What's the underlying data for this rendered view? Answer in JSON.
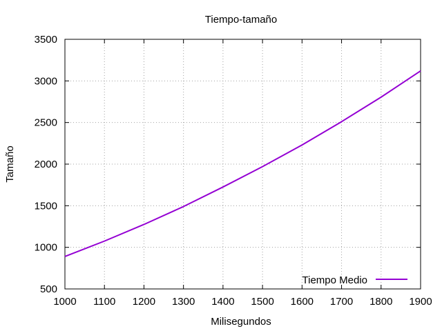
{
  "chart_data": {
    "type": "line",
    "title": "Tiempo-tamaño",
    "xlabel": "Milisegundos",
    "ylabel": "Tamaño",
    "xlim": [
      1000,
      1900
    ],
    "ylim": [
      500,
      3500
    ],
    "xticks": [
      1000,
      1100,
      1200,
      1300,
      1400,
      1500,
      1600,
      1700,
      1800,
      1900
    ],
    "yticks": [
      500,
      1000,
      1500,
      2000,
      2500,
      3000,
      3500
    ],
    "grid": true,
    "legend_position": "bottom-right",
    "series": [
      {
        "name": "Tiempo Medio",
        "color": "#9400d3",
        "x": [
          1000,
          1100,
          1200,
          1300,
          1400,
          1500,
          1600,
          1700,
          1800,
          1900
        ],
        "y": [
          890,
          1075,
          1275,
          1490,
          1725,
          1970,
          2230,
          2510,
          2805,
          3120
        ]
      }
    ]
  }
}
